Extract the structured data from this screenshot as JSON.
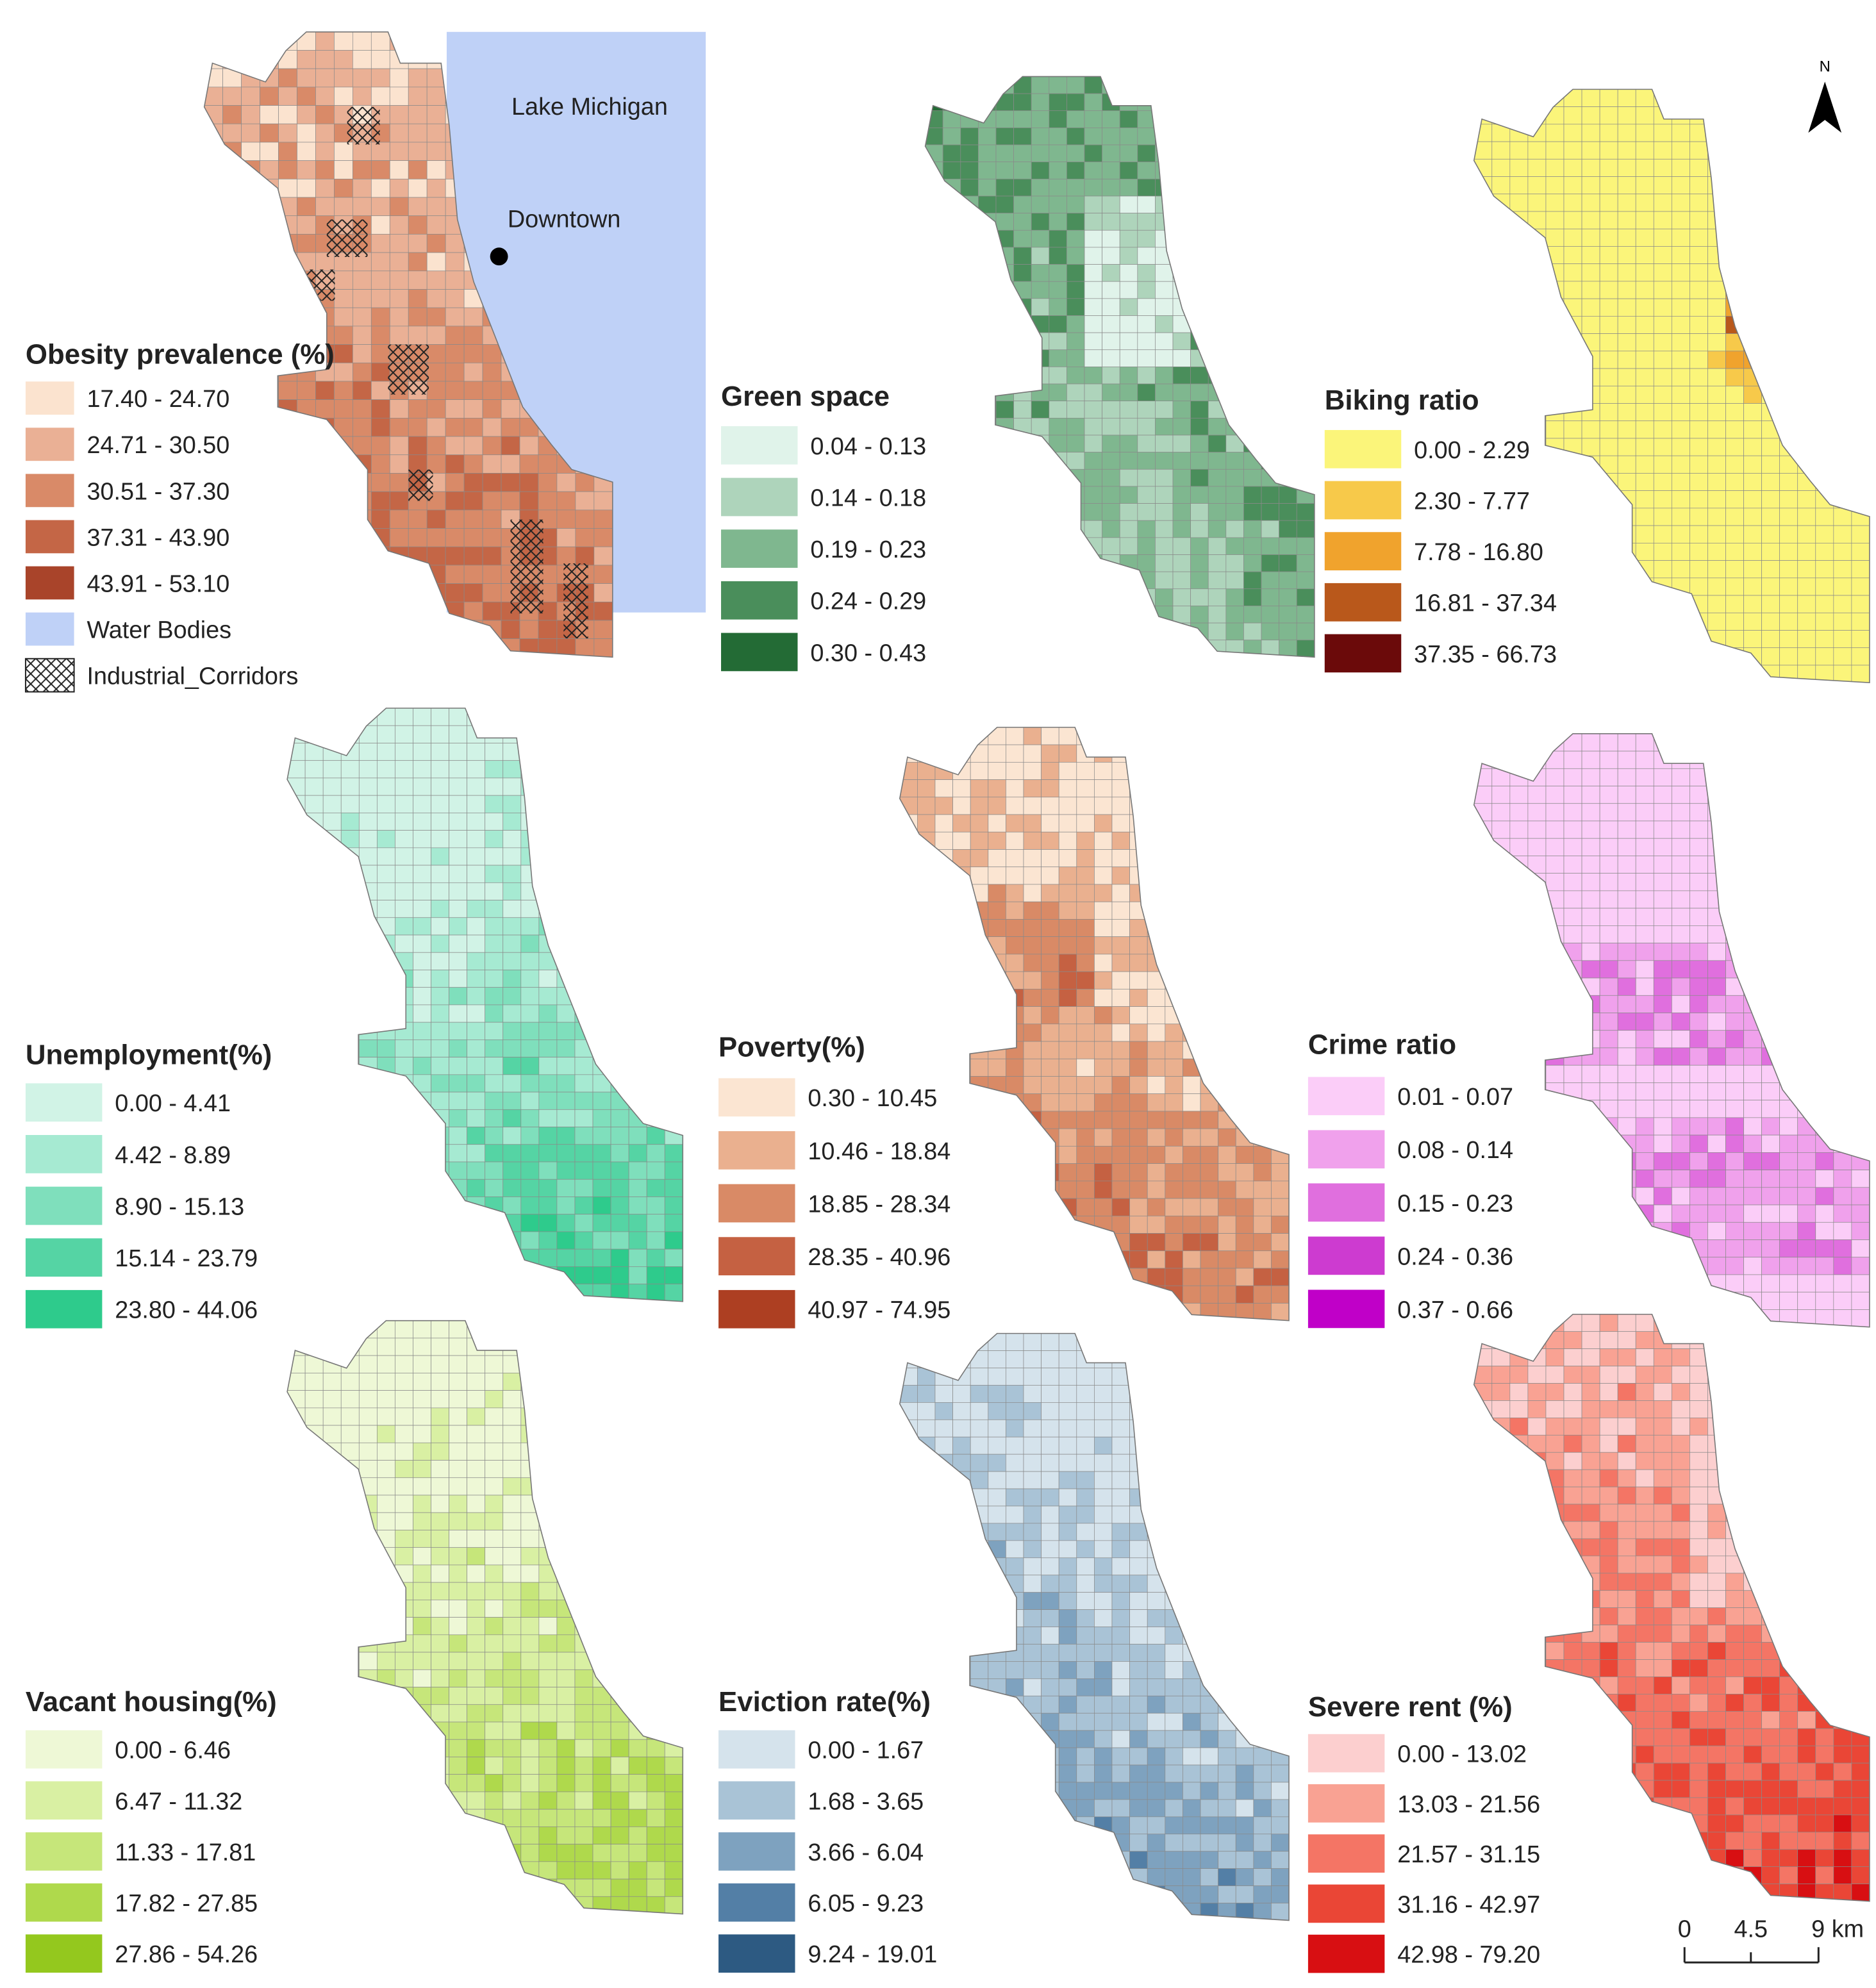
{
  "panels": [
    {
      "title": "Obesity prevalence (%)",
      "classes": [
        {
          "label": "17.40 - 24.70",
          "color": "#fbe3cf"
        },
        {
          "label": "24.71 - 30.50",
          "color": "#eab095"
        },
        {
          "label": "30.51 - 37.30",
          "color": "#d98a68"
        },
        {
          "label": "37.31 - 43.90",
          "color": "#c46646"
        },
        {
          "label": "43.91 - 53.10",
          "color": "#a9442a"
        }
      ],
      "extra_items": [
        {
          "label": "Water Bodies",
          "color": "#bfd1f7"
        },
        {
          "label": "Industrial_Corridors",
          "fill": "crosshatch"
        }
      ]
    },
    {
      "title": "Green space",
      "classes": [
        {
          "label": "0.04 - 0.13",
          "color": "#e0f3ea"
        },
        {
          "label": "0.14 - 0.18",
          "color": "#aed4bb"
        },
        {
          "label": "0.19 - 0.23",
          "color": "#7fb78f"
        },
        {
          "label": "0.24 - 0.29",
          "color": "#4a8e5b"
        },
        {
          "label": "0.30 - 0.43",
          "color": "#236b35"
        }
      ]
    },
    {
      "title": "Biking ratio",
      "classes": [
        {
          "label": "0.00 - 2.29",
          "color": "#fbf57a"
        },
        {
          "label": "2.30 - 7.77",
          "color": "#f7c94a"
        },
        {
          "label": "7.78 - 16.80",
          "color": "#f0a32d"
        },
        {
          "label": "16.81 - 37.34",
          "color": "#b9581b"
        },
        {
          "label": "37.35 - 66.73",
          "color": "#6b0a0a"
        }
      ]
    },
    {
      "title": "Unemployment(%)",
      "classes": [
        {
          "label": "0.00 - 4.41",
          "color": "#d1f3e6"
        },
        {
          "label": "4.42 - 8.89",
          "color": "#a6ead2"
        },
        {
          "label": "8.90 - 15.13",
          "color": "#7fdfbc"
        },
        {
          "label": "15.14 - 23.79",
          "color": "#55d4a4"
        },
        {
          "label": "23.80 - 44.06",
          "color": "#2ecb8c"
        }
      ]
    },
    {
      "title": "Poverty(%)",
      "classes": [
        {
          "label": "0.30 - 10.45",
          "color": "#fbe5d2"
        },
        {
          "label": "10.46 - 18.84",
          "color": "#eab08f"
        },
        {
          "label": "18.85 - 28.34",
          "color": "#d98a66"
        },
        {
          "label": "28.35 - 40.96",
          "color": "#c56142"
        },
        {
          "label": "40.97 - 74.95",
          "color": "#ad3f22"
        }
      ]
    },
    {
      "title": "Crime ratio",
      "classes": [
        {
          "label": "0.01 - 0.07",
          "color": "#fbcdf8"
        },
        {
          "label": "0.08 - 0.14",
          "color": "#f0a1ec"
        },
        {
          "label": "0.15 - 0.23",
          "color": "#e06fde"
        },
        {
          "label": "0.24 - 0.36",
          "color": "#cd3bd0"
        },
        {
          "label": "0.37 - 0.66",
          "color": "#c000c8"
        }
      ]
    },
    {
      "title": "Vacant housing(%)",
      "classes": [
        {
          "label": "0.00 - 6.46",
          "color": "#eef8d6"
        },
        {
          "label": "6.47 - 11.32",
          "color": "#d9f0a3"
        },
        {
          "label": "11.33 - 17.81",
          "color": "#c6e67a"
        },
        {
          "label": "17.82 - 27.85",
          "color": "#afd94c"
        },
        {
          "label": "27.86 - 54.26",
          "color": "#94c81e"
        }
      ]
    },
    {
      "title": "Eviction rate(%)",
      "classes": [
        {
          "label": "0.00 - 1.67",
          "color": "#d5e3ec"
        },
        {
          "label": "1.68 - 3.65",
          "color": "#a9c3d6"
        },
        {
          "label": "3.66 - 6.04",
          "color": "#7ea2bf"
        },
        {
          "label": "6.05 - 9.23",
          "color": "#537fa6"
        },
        {
          "label": "9.24 - 19.01",
          "color": "#2d5a82"
        }
      ]
    },
    {
      "title": "Severe rent (%)",
      "classes": [
        {
          "label": "0.00 - 13.02",
          "color": "#fccfcf"
        },
        {
          "label": "13.03 - 21.56",
          "color": "#f9a293"
        },
        {
          "label": "21.57 - 31.15",
          "color": "#f47565"
        },
        {
          "label": "31.16 - 42.97",
          "color": "#ea4636"
        },
        {
          "label": "42.98 - 79.20",
          "color": "#d80f12"
        }
      ]
    }
  ],
  "annotations": {
    "lake": "Lake Michigan",
    "downtown": "Downtown",
    "north": "N"
  },
  "scale_bar": {
    "labels": [
      "0",
      "4.5",
      "9 km"
    ]
  }
}
